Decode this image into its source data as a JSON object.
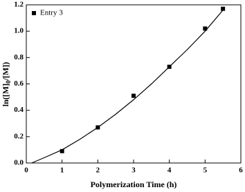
{
  "chart_data": {
    "type": "scatter",
    "x_label": "Polymerization Time (h)",
    "y_label": [
      "ln([M]",
      "0",
      "/[M])"
    ],
    "xlim": [
      0,
      6
    ],
    "xticks": [
      0,
      1,
      2,
      3,
      4,
      5,
      6
    ],
    "ylim": [
      0,
      1.2
    ],
    "yticks": [
      {
        "value": 0,
        "label": "0.0"
      },
      0.2,
      0.4,
      0.6,
      0.8,
      {
        "value": 1,
        "label": "1.0"
      },
      {
        "value": 1.2,
        "label": "1.2"
      }
    ],
    "legend": "upper left",
    "series": [
      {
        "name": "Entry 3",
        "color": "#000000",
        "style": "marker",
        "x": [
          1,
          2,
          3,
          4,
          5,
          5.5
        ],
        "values": [
          0.09,
          0.27,
          0.51,
          0.73,
          1.02,
          1.17
        ]
      },
      {
        "color": "#000000",
        "style": "line",
        "x": [
          0.15,
          0.5,
          1,
          1.5,
          2,
          2.5,
          3,
          3.5,
          4,
          4.5,
          5,
          5.5
        ],
        "values": [
          0,
          0.04,
          0.1,
          0.18,
          0.27,
          0.37,
          0.48,
          0.6,
          0.73,
          0.86,
          1.0,
          1.16
        ]
      }
    ]
  }
}
